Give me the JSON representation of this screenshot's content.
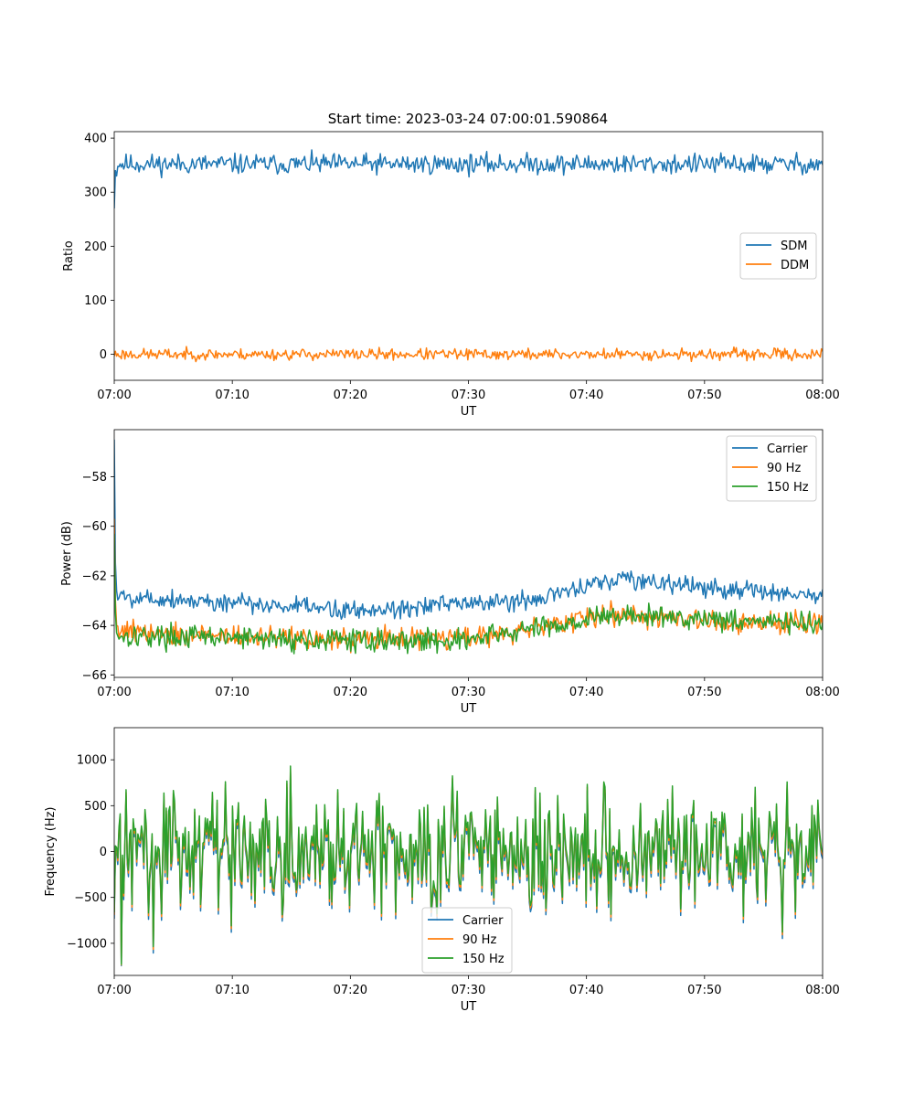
{
  "figure": {
    "title": "Start time: 2023-03-24 07:00:01.590864"
  },
  "chart_data": [
    {
      "type": "line",
      "xlabel": "UT",
      "ylabel": "Ratio",
      "x_ticks": [
        "07:00",
        "07:10",
        "07:20",
        "07:30",
        "07:40",
        "07:50",
        "08:00"
      ],
      "y_ticks": [
        0,
        100,
        200,
        300,
        400
      ],
      "xlim": [
        "07:00",
        "08:00"
      ],
      "ylim": [
        -48,
        412
      ],
      "legend": "center-right",
      "grid": false,
      "series": [
        {
          "name": "SDM",
          "color": "#1f77b4",
          "baseline": 352,
          "noise": 16,
          "start": [
            270,
            340,
            330
          ],
          "seed": 11
        },
        {
          "name": "DDM",
          "color": "#ff7f0e",
          "baseline": 0,
          "noise": 9,
          "seed": 23
        }
      ]
    },
    {
      "type": "line",
      "xlabel": "UT",
      "ylabel": "Power (dB)",
      "x_ticks": [
        "07:00",
        "07:10",
        "07:20",
        "07:30",
        "07:40",
        "07:50",
        "08:00"
      ],
      "y_ticks": [
        -66,
        -64,
        -62,
        -60,
        -58
      ],
      "y_tick_labels": [
        "−66",
        "−64",
        "−62",
        "−60",
        "−58"
      ],
      "xlim": [
        "07:00",
        "08:00"
      ],
      "ylim": [
        -66.1,
        -56.1
      ],
      "legend": "top-right",
      "grid": false,
      "series": [
        {
          "name": "Carrier",
          "color": "#1f77b4",
          "trend_minutes": [
            0,
            20,
            35,
            43,
            50,
            60
          ],
          "trend_values": [
            -62.8,
            -63.4,
            -63.0,
            -62.1,
            -62.5,
            -62.8
          ],
          "noise": 0.35,
          "start": [
            -56.5,
            -61.5,
            -62.6
          ],
          "seed": 5
        },
        {
          "name": "90 Hz",
          "color": "#ff7f0e",
          "trend_minutes": [
            0,
            18,
            30,
            42,
            50,
            60
          ],
          "trend_values": [
            -64.2,
            -64.6,
            -64.5,
            -63.6,
            -63.8,
            -64.0
          ],
          "noise": 0.4,
          "start": [
            -59.7,
            -63.0,
            -64.0
          ],
          "seed": 9
        },
        {
          "name": "150 Hz",
          "color": "#2ca02c",
          "trend_minutes": [
            0,
            18,
            30,
            42,
            50,
            60
          ],
          "trend_values": [
            -64.4,
            -64.6,
            -64.6,
            -63.6,
            -63.7,
            -64.0
          ],
          "noise": 0.4,
          "start": [
            -60.3,
            -63.5,
            -64.3
          ],
          "seed": 17
        }
      ]
    },
    {
      "type": "line",
      "xlabel": "UT",
      "ylabel": "Frequency (Hz)",
      "x_ticks": [
        "07:00",
        "07:10",
        "07:20",
        "07:30",
        "07:40",
        "07:50",
        "08:00"
      ],
      "y_ticks": [
        -1000,
        -500,
        0,
        500,
        1000
      ],
      "y_tick_labels": [
        "−1000",
        "−500",
        "0",
        "500",
        "1000"
      ],
      "xlim": [
        "07:00",
        "08:00"
      ],
      "ylim": [
        -1350,
        1350
      ],
      "legend": "bottom-center",
      "grid": false,
      "series": [
        {
          "name": "Carrier",
          "color": "#1f77b4",
          "scale": 1.0,
          "offset": -70,
          "seed": 31
        },
        {
          "name": "90 Hz",
          "color": "#ff7f0e",
          "scale": 1.0,
          "offset": -30,
          "seed": 31
        },
        {
          "name": "150 Hz",
          "color": "#2ca02c",
          "scale": 1.0,
          "offset": 0,
          "seed": 31
        }
      ]
    }
  ]
}
